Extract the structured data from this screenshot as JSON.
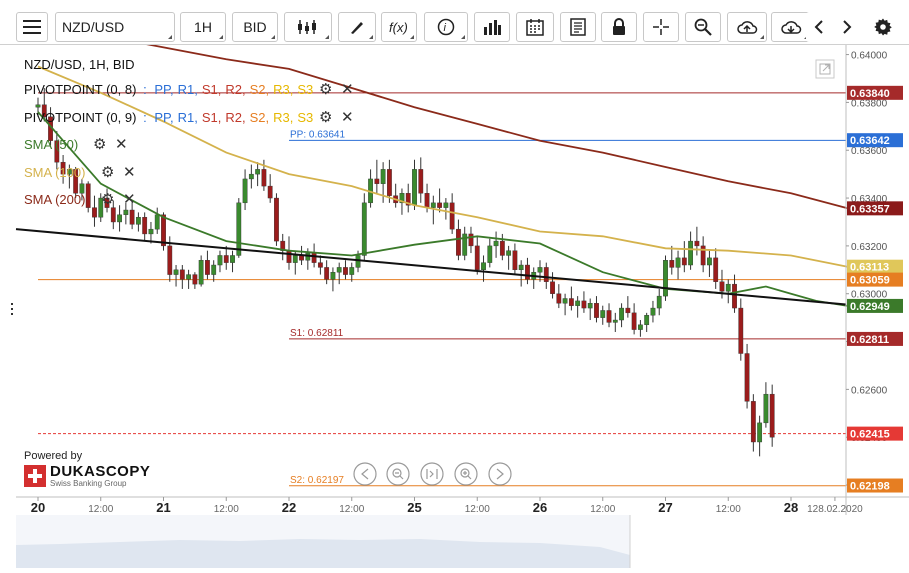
{
  "toolbar": {
    "instrument": "NZD/USD",
    "period": "1H",
    "side": "BID",
    "buttons": [
      "menu-icon",
      "candles-icon",
      "draw-icon",
      "function-icon",
      "info-icon",
      "bar-chart-icon",
      "calendar-icon",
      "news-icon",
      "lock-icon",
      "crosshair-icon",
      "zoom-icon",
      "upload-icon",
      "download-icon",
      "arrow-left-icon",
      "arrow-right-icon",
      "gear-icon"
    ]
  },
  "legend": {
    "title": "NZD/USD, 1H, BID",
    "pivot1": {
      "name": "PIVOTPOINT (0, 8)",
      "sep": ":",
      "items": [
        "PP,",
        "R1,",
        "S1,",
        "R2,",
        "S2,",
        "R3,",
        "S3"
      ]
    },
    "pivot2": {
      "name": "PIVOTPOINT (0, 9)",
      "sep": ":",
      "items": [
        "PP,",
        "R1,",
        "S1,",
        "R2,",
        "S2,",
        "R3,",
        "S3"
      ]
    },
    "sma50": "SMA (50)",
    "sma100": "SMA (100)",
    "sma200": "SMA (200)",
    "item_colors": [
      "#2b6fd6",
      "#2b6fd6",
      "#c0392b",
      "#c0392b",
      "#e67e22",
      "#e6b800",
      "#e6b800"
    ]
  },
  "branding": {
    "powered_by": "Powered by",
    "logo": "DUKASCOPY",
    "tagline": "Swiss Banking Group"
  },
  "chart_data": {
    "type": "candlestick",
    "title": "NZD/USD, 1H, BID",
    "y_range": [
      0.6215,
      0.6404
    ],
    "y_ticks": [
      "0.64000",
      "0.63800",
      "0.63600",
      "0.63400",
      "0.63200",
      "0.63000",
      "0.62800",
      "0.62600",
      "0.62400",
      "0.62200"
    ],
    "x_labels": [
      {
        "label": "20",
        "t": 0.0
      },
      {
        "label": "12:00",
        "t": 0.5
      },
      {
        "label": "21",
        "t": 1.0
      },
      {
        "label": "12:00",
        "t": 1.5
      },
      {
        "label": "22",
        "t": 2.0
      },
      {
        "label": "12:00",
        "t": 2.5
      },
      {
        "label": "25",
        "t": 3.0
      },
      {
        "label": "12:00",
        "t": 3.5
      },
      {
        "label": "26",
        "t": 4.0
      },
      {
        "label": "12:00",
        "t": 4.5
      },
      {
        "label": "27",
        "t": 5.0
      },
      {
        "label": "12:00",
        "t": 5.5
      },
      {
        "label": "28",
        "t": 6.0
      },
      {
        "label": "128.02.2020",
        "t": 6.35
      }
    ],
    "price_tags": [
      {
        "value": "0.63840",
        "color": "#a52a2a"
      },
      {
        "value": "0.63642",
        "color": "#2b6fd6"
      },
      {
        "value": "0.63357",
        "color": "#8b1a1a"
      },
      {
        "value": "0.63113",
        "color": "#e0c75a"
      },
      {
        "value": "0.63059",
        "color": "#e67e22"
      },
      {
        "value": "0.62949",
        "color": "#3b7a2a"
      },
      {
        "value": "0.62811",
        "color": "#a52a2a"
      },
      {
        "value": "0.62415",
        "color": "#e53935"
      },
      {
        "value": "0.62198",
        "color": "#e67e22"
      }
    ],
    "pivot_labels": [
      {
        "text": "PP: 0.63641",
        "value": 0.63641,
        "color": "#2b6fd6",
        "from_t": 2.0
      },
      {
        "text": "S1: 0.62811",
        "value": 0.62811,
        "color": "#a52a2a",
        "from_t": 2.0
      },
      {
        "text": "S2: 0.62197",
        "value": 0.62197,
        "color": "#e67e22",
        "from_t": 2.0
      }
    ],
    "hlines": [
      {
        "value": 0.6384,
        "color": "#a52a2a",
        "from_t": 0.0
      },
      {
        "value": 0.63059,
        "color": "#e67e22",
        "from_t": 0.0
      },
      {
        "value": 0.62415,
        "color": "#e53935",
        "from_t": 0.0,
        "dashed": true
      }
    ],
    "trendline": {
      "t1": 0.0,
      "v1": 0.6327,
      "t2": 6.45,
      "v2": 0.62955
    },
    "series": [
      {
        "name": "SMA (50)",
        "color": "#3b7a2a",
        "points": [
          [
            0.0,
            0.6376
          ],
          [
            0.5,
            0.6346
          ],
          [
            1.0,
            0.6332
          ],
          [
            1.5,
            0.6322
          ],
          [
            2.0,
            0.6318
          ],
          [
            2.5,
            0.6316
          ],
          [
            3.0,
            0.63205
          ],
          [
            3.5,
            0.6324
          ],
          [
            4.0,
            0.6321
          ],
          [
            4.5,
            0.6309
          ],
          [
            5.0,
            0.6302
          ],
          [
            5.5,
            0.63
          ],
          [
            5.8,
            0.6303
          ],
          [
            6.0,
            0.63
          ],
          [
            6.2,
            0.6297
          ],
          [
            6.45,
            0.62949
          ]
        ]
      },
      {
        "name": "SMA (100)",
        "color": "#d4b24c",
        "points": [
          [
            0.0,
            0.6395
          ],
          [
            0.5,
            0.6384
          ],
          [
            1.0,
            0.6372
          ],
          [
            1.5,
            0.6359
          ],
          [
            2.0,
            0.635
          ],
          [
            2.5,
            0.6345
          ],
          [
            3.0,
            0.6337
          ],
          [
            3.5,
            0.6332
          ],
          [
            4.0,
            0.6326
          ],
          [
            4.5,
            0.6324
          ],
          [
            5.0,
            0.6319
          ],
          [
            5.5,
            0.6318
          ],
          [
            6.0,
            0.6316
          ],
          [
            6.45,
            0.63113
          ]
        ]
      },
      {
        "name": "SMA (200)",
        "color": "#8b2a1a",
        "points": [
          [
            0.0,
            0.6412
          ],
          [
            0.7,
            0.6406
          ],
          [
            1.5,
            0.6398
          ],
          [
            2.0,
            0.6394
          ],
          [
            2.5,
            0.6386
          ],
          [
            3.0,
            0.6378
          ],
          [
            3.5,
            0.6371
          ],
          [
            4.0,
            0.6364
          ],
          [
            4.5,
            0.6359
          ],
          [
            5.0,
            0.6353
          ],
          [
            5.5,
            0.6347
          ],
          [
            6.0,
            0.6342
          ],
          [
            6.45,
            0.63357
          ]
        ]
      }
    ],
    "candles": [
      [
        0.0,
        0.6378,
        0.6382,
        0.6374,
        0.6379
      ],
      [
        0.05,
        0.6379,
        0.6386,
        0.6372,
        0.6374
      ],
      [
        0.1,
        0.6374,
        0.6378,
        0.6362,
        0.6364
      ],
      [
        0.15,
        0.6364,
        0.6368,
        0.6352,
        0.6355
      ],
      [
        0.2,
        0.6355,
        0.6358,
        0.6346,
        0.635
      ],
      [
        0.25,
        0.635,
        0.6354,
        0.6344,
        0.6352
      ],
      [
        0.3,
        0.6352,
        0.6353,
        0.634,
        0.6342
      ],
      [
        0.35,
        0.6342,
        0.6348,
        0.6339,
        0.6346
      ],
      [
        0.4,
        0.6346,
        0.6347,
        0.6334,
        0.6336
      ],
      [
        0.45,
        0.6336,
        0.6341,
        0.6328,
        0.6332
      ],
      [
        0.5,
        0.6332,
        0.6342,
        0.633,
        0.634
      ],
      [
        0.55,
        0.634,
        0.6344,
        0.6334,
        0.6336
      ],
      [
        0.6,
        0.6336,
        0.6339,
        0.6327,
        0.633
      ],
      [
        0.65,
        0.633,
        0.6337,
        0.6326,
        0.6333
      ],
      [
        0.7,
        0.6333,
        0.6338,
        0.6329,
        0.6335
      ],
      [
        0.75,
        0.6335,
        0.6339,
        0.6327,
        0.6329
      ],
      [
        0.8,
        0.6329,
        0.6334,
        0.6326,
        0.6332
      ],
      [
        0.85,
        0.6332,
        0.6334,
        0.6322,
        0.6325
      ],
      [
        0.9,
        0.6325,
        0.633,
        0.6321,
        0.6327
      ],
      [
        0.95,
        0.6327,
        0.6336,
        0.6325,
        0.6333
      ],
      [
        1.0,
        0.6333,
        0.6334,
        0.6318,
        0.632
      ],
      [
        1.05,
        0.632,
        0.6324,
        0.6305,
        0.6308
      ],
      [
        1.1,
        0.6308,
        0.6312,
        0.6303,
        0.631
      ],
      [
        1.15,
        0.631,
        0.6312,
        0.6302,
        0.6306
      ],
      [
        1.2,
        0.6306,
        0.631,
        0.6302,
        0.6308
      ],
      [
        1.25,
        0.6308,
        0.6309,
        0.6302,
        0.6304
      ],
      [
        1.3,
        0.6304,
        0.6316,
        0.6303,
        0.6314
      ],
      [
        1.35,
        0.6314,
        0.6318,
        0.6306,
        0.6308
      ],
      [
        1.4,
        0.6308,
        0.6314,
        0.6305,
        0.6312
      ],
      [
        1.45,
        0.6312,
        0.6318,
        0.6309,
        0.6316
      ],
      [
        1.5,
        0.6316,
        0.632,
        0.631,
        0.6313
      ],
      [
        1.55,
        0.6313,
        0.6318,
        0.6309,
        0.6316
      ],
      [
        1.6,
        0.6316,
        0.634,
        0.6315,
        0.6338
      ],
      [
        1.65,
        0.6338,
        0.6352,
        0.6335,
        0.6348
      ],
      [
        1.7,
        0.6348,
        0.6354,
        0.6344,
        0.635
      ],
      [
        1.75,
        0.635,
        0.6355,
        0.6345,
        0.6352
      ],
      [
        1.8,
        0.6352,
        0.6356,
        0.6343,
        0.6345
      ],
      [
        1.85,
        0.6345,
        0.635,
        0.6338,
        0.634
      ],
      [
        1.9,
        0.634,
        0.6342,
        0.632,
        0.6322
      ],
      [
        1.95,
        0.6322,
        0.6325,
        0.6314,
        0.6318
      ],
      [
        2.0,
        0.6318,
        0.6324,
        0.631,
        0.6313
      ],
      [
        2.05,
        0.6313,
        0.6318,
        0.6308,
        0.6316
      ],
      [
        2.1,
        0.6316,
        0.632,
        0.6312,
        0.6314
      ],
      [
        2.15,
        0.6314,
        0.6319,
        0.631,
        0.6317
      ],
      [
        2.2,
        0.6317,
        0.6321,
        0.6311,
        0.6313
      ],
      [
        2.25,
        0.6313,
        0.6316,
        0.6308,
        0.6311
      ],
      [
        2.3,
        0.6311,
        0.6314,
        0.6304,
        0.6306
      ],
      [
        2.35,
        0.6306,
        0.6311,
        0.6301,
        0.6309
      ],
      [
        2.4,
        0.6309,
        0.6313,
        0.6304,
        0.6311
      ],
      [
        2.45,
        0.6311,
        0.6314,
        0.6306,
        0.6308
      ],
      [
        2.5,
        0.6308,
        0.6313,
        0.6305,
        0.6311
      ],
      [
        2.55,
        0.6311,
        0.6318,
        0.6309,
        0.6316
      ],
      [
        2.6,
        0.6316,
        0.6342,
        0.6314,
        0.6338
      ],
      [
        2.65,
        0.6338,
        0.6352,
        0.6336,
        0.6348
      ],
      [
        2.7,
        0.6348,
        0.6356,
        0.6342,
        0.6346
      ],
      [
        2.75,
        0.6346,
        0.6355,
        0.6338,
        0.6352
      ],
      [
        2.8,
        0.6352,
        0.6356,
        0.6338,
        0.6341
      ],
      [
        2.85,
        0.6341,
        0.6346,
        0.6336,
        0.6338
      ],
      [
        2.9,
        0.6338,
        0.6344,
        0.6333,
        0.6342
      ],
      [
        2.95,
        0.6342,
        0.6346,
        0.6334,
        0.6337
      ],
      [
        3.0,
        0.6337,
        0.6356,
        0.6335,
        0.6352
      ],
      [
        3.05,
        0.6352,
        0.6357,
        0.6338,
        0.6342
      ],
      [
        3.1,
        0.6342,
        0.6346,
        0.6334,
        0.6336
      ],
      [
        3.15,
        0.6336,
        0.6341,
        0.6329,
        0.6338
      ],
      [
        3.2,
        0.6338,
        0.6344,
        0.6334,
        0.6336
      ],
      [
        3.25,
        0.6336,
        0.634,
        0.6331,
        0.6338
      ],
      [
        3.3,
        0.6338,
        0.6342,
        0.6325,
        0.6327
      ],
      [
        3.35,
        0.6327,
        0.6331,
        0.6314,
        0.6316
      ],
      [
        3.4,
        0.6316,
        0.6328,
        0.6314,
        0.6325
      ],
      [
        3.45,
        0.6325,
        0.6328,
        0.6317,
        0.632
      ],
      [
        3.5,
        0.632,
        0.6324,
        0.6308,
        0.631
      ],
      [
        3.55,
        0.631,
        0.6316,
        0.6305,
        0.6313
      ],
      [
        3.6,
        0.6313,
        0.6323,
        0.6311,
        0.632
      ],
      [
        3.65,
        0.632,
        0.6326,
        0.6315,
        0.6322
      ],
      [
        3.7,
        0.6322,
        0.6325,
        0.6314,
        0.6316
      ],
      [
        3.75,
        0.6316,
        0.632,
        0.631,
        0.6318
      ],
      [
        3.8,
        0.6318,
        0.6321,
        0.6308,
        0.631
      ],
      [
        3.85,
        0.631,
        0.6314,
        0.6303,
        0.6312
      ],
      [
        3.9,
        0.6312,
        0.6315,
        0.6304,
        0.6306
      ],
      [
        3.95,
        0.6306,
        0.6311,
        0.6302,
        0.6309
      ],
      [
        4.0,
        0.6309,
        0.6314,
        0.6305,
        0.6311
      ],
      [
        4.05,
        0.6311,
        0.6313,
        0.6302,
        0.6305
      ],
      [
        4.1,
        0.6305,
        0.6309,
        0.6298,
        0.63
      ],
      [
        4.15,
        0.63,
        0.6304,
        0.6294,
        0.6296
      ],
      [
        4.2,
        0.6296,
        0.63,
        0.6291,
        0.6298
      ],
      [
        4.25,
        0.6298,
        0.6303,
        0.6293,
        0.6295
      ],
      [
        4.3,
        0.6295,
        0.6299,
        0.629,
        0.6297
      ],
      [
        4.35,
        0.6297,
        0.6301,
        0.6292,
        0.6294
      ],
      [
        4.4,
        0.6294,
        0.6298,
        0.6289,
        0.6296
      ],
      [
        4.45,
        0.6296,
        0.6299,
        0.6288,
        0.629
      ],
      [
        4.5,
        0.629,
        0.6295,
        0.6287,
        0.6293
      ],
      [
        4.55,
        0.6293,
        0.6296,
        0.6286,
        0.6288
      ],
      [
        4.6,
        0.6288,
        0.6292,
        0.6284,
        0.6289
      ],
      [
        4.65,
        0.6289,
        0.6296,
        0.6286,
        0.6294
      ],
      [
        4.7,
        0.6294,
        0.6299,
        0.629,
        0.6292
      ],
      [
        4.75,
        0.6292,
        0.6296,
        0.6283,
        0.6285
      ],
      [
        4.8,
        0.6285,
        0.6289,
        0.6282,
        0.6287
      ],
      [
        4.85,
        0.6287,
        0.6292,
        0.6284,
        0.6291
      ],
      [
        4.9,
        0.6291,
        0.6297,
        0.6288,
        0.6294
      ],
      [
        4.95,
        0.6294,
        0.6302,
        0.6291,
        0.6299
      ],
      [
        5.0,
        0.6299,
        0.6316,
        0.6297,
        0.6314
      ],
      [
        5.05,
        0.6314,
        0.632,
        0.6308,
        0.6311
      ],
      [
        5.1,
        0.6311,
        0.6318,
        0.6306,
        0.6315
      ],
      [
        5.15,
        0.6315,
        0.6322,
        0.6309,
        0.6312
      ],
      [
        5.2,
        0.6312,
        0.6326,
        0.631,
        0.6322
      ],
      [
        5.25,
        0.6322,
        0.6328,
        0.6316,
        0.632
      ],
      [
        5.3,
        0.632,
        0.6324,
        0.6309,
        0.6312
      ],
      [
        5.35,
        0.6312,
        0.6318,
        0.6307,
        0.6315
      ],
      [
        5.4,
        0.6315,
        0.6319,
        0.6302,
        0.6305
      ],
      [
        5.45,
        0.6305,
        0.631,
        0.6298,
        0.6301
      ],
      [
        5.5,
        0.6301,
        0.6306,
        0.6296,
        0.6304
      ],
      [
        5.55,
        0.6304,
        0.6308,
        0.6292,
        0.6294
      ],
      [
        5.6,
        0.6294,
        0.6298,
        0.6272,
        0.6275
      ],
      [
        5.65,
        0.6275,
        0.6279,
        0.6252,
        0.6255
      ],
      [
        5.7,
        0.6255,
        0.6258,
        0.6234,
        0.6238
      ],
      [
        5.75,
        0.6238,
        0.6249,
        0.6232,
        0.6246
      ],
      [
        5.8,
        0.6246,
        0.6263,
        0.6244,
        0.6258
      ],
      [
        5.85,
        0.6258,
        0.6262,
        0.6236,
        0.624
      ]
    ]
  }
}
